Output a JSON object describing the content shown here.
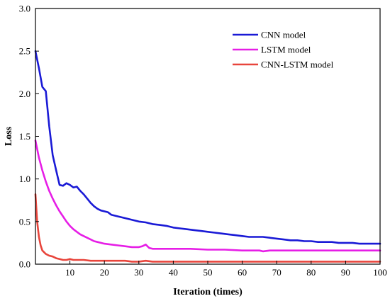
{
  "chart_data": {
    "type": "line",
    "xlabel": "Iteration (times)",
    "ylabel": "Loss",
    "xlim": [
      0,
      100
    ],
    "ylim": [
      0,
      3.0
    ],
    "xticks": [
      10,
      20,
      30,
      40,
      50,
      60,
      70,
      80,
      90,
      100
    ],
    "yticks": [
      0.0,
      0.5,
      1.0,
      1.5,
      2.0,
      2.5,
      3.0
    ],
    "grid": false,
    "legend_position": "top-right",
    "series": [
      {
        "name": "CNN model",
        "color": "#1a1ad6",
        "x": [
          0,
          1,
          2,
          3,
          4,
          5,
          6,
          7,
          8,
          9,
          10,
          11,
          12,
          13,
          14,
          15,
          16,
          17,
          18,
          19,
          20,
          21,
          22,
          24,
          26,
          28,
          30,
          32,
          34,
          36,
          38,
          40,
          42,
          44,
          46,
          48,
          50,
          52,
          54,
          56,
          58,
          60,
          62,
          64,
          66,
          68,
          70,
          72,
          74,
          76,
          78,
          80,
          82,
          84,
          86,
          88,
          90,
          92,
          94,
          96,
          98,
          100
        ],
        "y": [
          2.5,
          2.3,
          2.08,
          2.03,
          1.62,
          1.28,
          1.1,
          0.93,
          0.92,
          0.95,
          0.93,
          0.9,
          0.91,
          0.86,
          0.82,
          0.77,
          0.72,
          0.68,
          0.65,
          0.63,
          0.62,
          0.61,
          0.58,
          0.56,
          0.54,
          0.52,
          0.5,
          0.49,
          0.47,
          0.46,
          0.45,
          0.43,
          0.42,
          0.41,
          0.4,
          0.39,
          0.38,
          0.37,
          0.36,
          0.35,
          0.34,
          0.33,
          0.32,
          0.32,
          0.32,
          0.31,
          0.3,
          0.29,
          0.28,
          0.28,
          0.27,
          0.27,
          0.26,
          0.26,
          0.26,
          0.25,
          0.25,
          0.25,
          0.24,
          0.24,
          0.24,
          0.24
        ]
      },
      {
        "name": "LSTM model",
        "color": "#e61ee6",
        "x": [
          0,
          1,
          2,
          3,
          4,
          5,
          6,
          7,
          8,
          9,
          10,
          11,
          12,
          13,
          14,
          15,
          16,
          17,
          18,
          19,
          20,
          22,
          24,
          26,
          28,
          30,
          31,
          32,
          33,
          34,
          36,
          40,
          45,
          50,
          55,
          60,
          65,
          66,
          68,
          70,
          75,
          80,
          85,
          90,
          95,
          100
        ],
        "y": [
          1.45,
          1.25,
          1.1,
          0.97,
          0.86,
          0.77,
          0.69,
          0.62,
          0.56,
          0.5,
          0.45,
          0.41,
          0.38,
          0.35,
          0.33,
          0.31,
          0.29,
          0.27,
          0.26,
          0.25,
          0.24,
          0.23,
          0.22,
          0.21,
          0.2,
          0.2,
          0.21,
          0.23,
          0.19,
          0.18,
          0.18,
          0.18,
          0.18,
          0.17,
          0.17,
          0.16,
          0.16,
          0.15,
          0.16,
          0.16,
          0.16,
          0.16,
          0.16,
          0.16,
          0.16,
          0.16
        ]
      },
      {
        "name": "CNN-LSTM model",
        "color": "#e8453c",
        "x": [
          0,
          0.5,
          1,
          1.5,
          2,
          3,
          4,
          5,
          6,
          7,
          8,
          9,
          10,
          11,
          12,
          14,
          16,
          18,
          20,
          22,
          24,
          26,
          28,
          30,
          32,
          34,
          40,
          50,
          60,
          70,
          80,
          90,
          100
        ],
        "y": [
          0.82,
          0.5,
          0.32,
          0.22,
          0.16,
          0.12,
          0.1,
          0.09,
          0.07,
          0.06,
          0.05,
          0.05,
          0.06,
          0.05,
          0.05,
          0.05,
          0.04,
          0.04,
          0.04,
          0.04,
          0.04,
          0.04,
          0.03,
          0.03,
          0.04,
          0.03,
          0.03,
          0.03,
          0.03,
          0.03,
          0.03,
          0.03,
          0.03
        ]
      }
    ]
  }
}
